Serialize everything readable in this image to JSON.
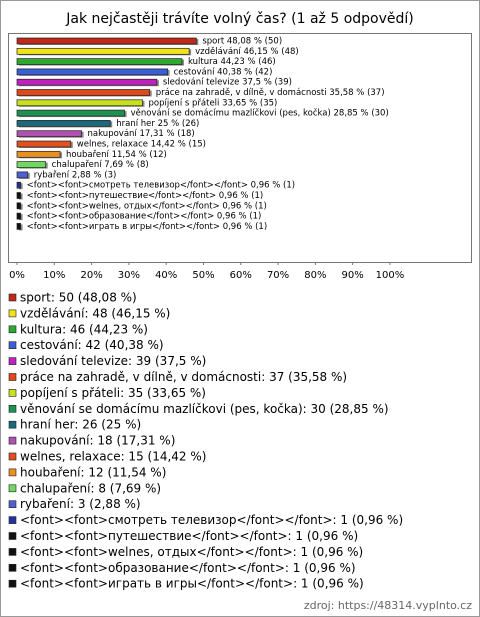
{
  "chart_data": {
    "type": "bar",
    "orientation": "horizontal",
    "title": "Jak nejčastěji trávíte volný čas? (1 až 5 odpovědí)",
    "values": [
      48.08,
      46.15,
      44.23,
      40.38,
      37.5,
      35.58,
      33.65,
      28.85,
      25,
      17.31,
      14.42,
      11.54,
      7.69,
      2.88,
      0.96,
      0.96,
      0.96,
      0.96,
      0.96
    ],
    "value_labels": [
      "sport 48,08 % (50)",
      "vzdělávání 46,15 % (48)",
      "kultura 44,23 % (46)",
      "cestování 40,38 % (42)",
      "sledování televize 37,5 % (39)",
      "práce na zahradě, v dílně, v domácnosti 35,58 % (37)",
      "popíjení s přáteli 33,65 % (35)",
      "věnování se domácímu mazlíčkovi (pes, kočka) 28,85 % (30)",
      "hraní her 25 % (26)",
      "nakupování 17,31 % (18)",
      "welnes, relaxace 14,42 % (15)",
      "houbaření 11,54 % (12)",
      "chalupaření 7,69 % (8)",
      "rybaření 2,88 % (3)",
      "<font><font>смотреть телевизор</font></font> 0,96 % (1)",
      "<font><font>путешествие</font></font> 0,96 % (1)",
      "<font><font>welnes, отдых</font></font> 0,96 % (1)",
      "<font><font>образование</font></font> 0,96 % (1)",
      "<font><font>играть в игры</font></font> 0,96 % (1)"
    ],
    "legend_labels": [
      "sport: 50 (48,08 %)",
      "vzdělávání: 48 (46,15 %)",
      "kultura: 46 (44,23 %)",
      "cestování: 42 (40,38 %)",
      "sledování televize: 39 (37,5 %)",
      "práce na zahradě, v dílně, v domácnosti: 37 (35,58 %)",
      "popíjení s přáteli: 35 (33,65 %)",
      "věnování se domácímu mazlíčkovi (pes, kočka): 30 (28,85 %)",
      "hraní her: 26 (25 %)",
      "nakupování: 18 (17,31 %)",
      "welnes, relaxace: 15 (14,42 %)",
      "houbaření: 12 (11,54 %)",
      "chalupaření: 8 (7,69 %)",
      "rybaření: 3 (2,88 %)",
      "<font><font>смотреть телевизор</font></font>: 1 (0,96 %)",
      "<font><font>путешествие</font></font>: 1 (0,96 %)",
      "<font><font>welnes, отдых</font></font>: 1 (0,96 %)",
      "<font><font>образование</font></font>: 1 (0,96 %)",
      "<font><font>играть в игры</font></font>: 1 (0,96 %)"
    ],
    "colors": [
      "#c0281c",
      "#f2e21c",
      "#2ea82e",
      "#3a5ed8",
      "#c020c0",
      "#e0481c",
      "#c8e020",
      "#1e9050",
      "#1a6a7a",
      "#b050b0",
      "#e05020",
      "#e89020",
      "#70d860",
      "#5060d0",
      "#223399",
      "#111111",
      "#111111",
      "#111111",
      "#111111"
    ],
    "xlim": [
      0,
      122
    ],
    "xticks": [
      {
        "value": 0,
        "label": "0%"
      },
      {
        "value": 10,
        "label": "10%"
      },
      {
        "value": 20,
        "label": "20%"
      },
      {
        "value": 30,
        "label": "30%"
      },
      {
        "value": 40,
        "label": "40%"
      },
      {
        "value": 50,
        "label": "50%"
      },
      {
        "value": 60,
        "label": "60%"
      },
      {
        "value": 70,
        "label": "70%"
      },
      {
        "value": 80,
        "label": "80%"
      },
      {
        "value": 90,
        "label": "90%"
      },
      {
        "value": 100,
        "label": "100%"
      }
    ],
    "source": "zdroj: https://48314.vyplnto.cz"
  }
}
